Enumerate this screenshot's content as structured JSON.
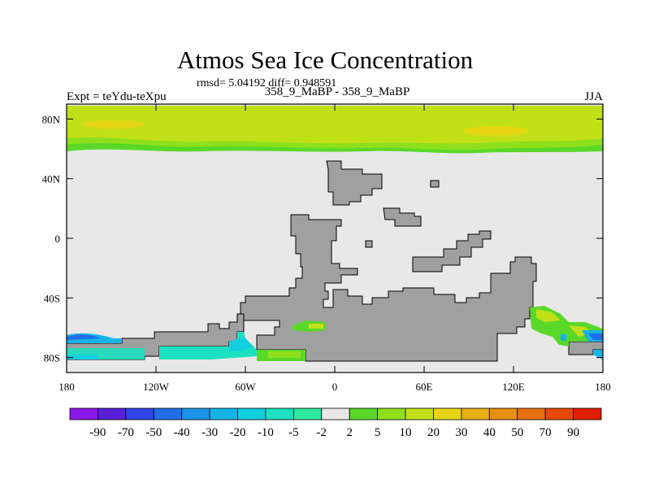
{
  "chart_data": {
    "type": "heatmap",
    "title": "Atmos Sea Ice Concentration",
    "subtitle": "rmsd= 5.04192 diff= 0.948591",
    "left_label": "Expt = teYdu-teXpu",
    "center_label": "358_9_MaBP - 358_9_MaBP",
    "right_label": "JJA",
    "x_ticks": [
      "180",
      "120W",
      "60W",
      "0",
      "60E",
      "120E",
      "180"
    ],
    "x_values": [
      -180,
      -120,
      -60,
      0,
      60,
      120,
      180
    ],
    "y_ticks": [
      "80N",
      "40N",
      "0",
      "40S",
      "80S"
    ],
    "y_values": [
      80,
      40,
      0,
      -40,
      -80
    ],
    "xlim": [
      -180,
      180
    ],
    "ylim": [
      -90,
      90
    ],
    "colorbar": {
      "labels": [
        "-90",
        "-70",
        "-50",
        "-40",
        "-30",
        "-20",
        "-10",
        "-5",
        "-2",
        "2",
        "5",
        "10",
        "20",
        "30",
        "40",
        "50",
        "70",
        "90"
      ],
      "colors": [
        "#8b17e8",
        "#5a1fd8",
        "#2d45e6",
        "#1f6ee8",
        "#1a93e8",
        "#16b4e6",
        "#12cfe0",
        "#1ce0c0",
        "#30e8a0",
        "#e8e8e8",
        "#5ad82a",
        "#8ee01c",
        "#c2e018",
        "#e6d414",
        "#e6b010",
        "#e6900e",
        "#e6700c",
        "#e6480a",
        "#e01e06"
      ]
    },
    "features": {
      "land_color": "#a0a0a0",
      "ocean_no_change_color": "#e8e8e8",
      "arctic_band_lat_range": [
        60,
        90
      ],
      "arctic_band_dominant_value_range": [
        10,
        50
      ]
    }
  }
}
